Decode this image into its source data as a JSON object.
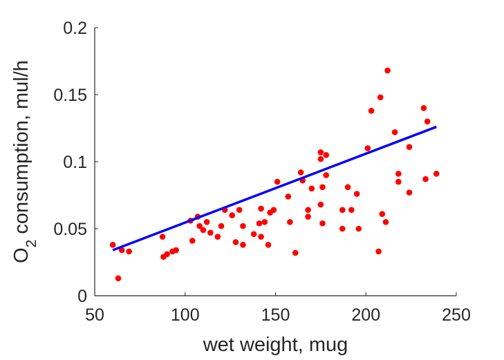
{
  "chart_data": {
    "type": "scatter",
    "title": "",
    "xlabel": "wet weight, mug",
    "ylabel_main": "O",
    "ylabel_sub": "2",
    "ylabel_rest": " consumption, mul/h",
    "xlim": [
      50,
      250
    ],
    "ylim": [
      0,
      0.2
    ],
    "xticks": [
      50,
      100,
      150,
      200,
      250
    ],
    "xtick_labels": [
      "50",
      "100",
      "150",
      "200",
      "250"
    ],
    "yticks": [
      0,
      0.05,
      0.1,
      0.15,
      0.2
    ],
    "ytick_labels": [
      "0",
      "0.05",
      "0.1",
      "0.15",
      "0.2"
    ],
    "grid": false,
    "legend": "none",
    "point_color": "#ff0000",
    "line_color": "#0000ff",
    "points": [
      [
        60,
        0.038
      ],
      [
        63,
        0.013
      ],
      [
        65,
        0.034
      ],
      [
        69,
        0.033
      ],
      [
        87.5,
        0.044
      ],
      [
        88,
        0.029
      ],
      [
        90,
        0.031
      ],
      [
        93,
        0.033
      ],
      [
        95,
        0.034
      ],
      [
        103,
        0.056
      ],
      [
        104,
        0.041
      ],
      [
        107,
        0.059
      ],
      [
        108,
        0.052
      ],
      [
        110,
        0.049
      ],
      [
        112,
        0.055
      ],
      [
        114,
        0.047
      ],
      [
        118,
        0.044
      ],
      [
        120,
        0.052
      ],
      [
        122,
        0.064
      ],
      [
        126,
        0.06
      ],
      [
        128,
        0.04
      ],
      [
        130,
        0.064
      ],
      [
        132,
        0.052
      ],
      [
        132,
        0.038
      ],
      [
        138,
        0.046
      ],
      [
        141,
        0.054
      ],
      [
        142,
        0.044
      ],
      [
        142,
        0.065
      ],
      [
        144,
        0.055
      ],
      [
        146,
        0.038
      ],
      [
        147,
        0.062
      ],
      [
        149,
        0.064
      ],
      [
        151,
        0.085
      ],
      [
        157,
        0.074
      ],
      [
        158,
        0.055
      ],
      [
        161,
        0.032
      ],
      [
        164,
        0.092
      ],
      [
        165,
        0.086
      ],
      [
        168,
        0.064
      ],
      [
        168,
        0.059
      ],
      [
        170,
        0.08
      ],
      [
        175,
        0.102
      ],
      [
        175,
        0.107
      ],
      [
        175,
        0.068
      ],
      [
        176,
        0.081
      ],
      [
        176,
        0.054
      ],
      [
        178,
        0.105
      ],
      [
        178,
        0.09
      ],
      [
        187,
        0.064
      ],
      [
        187,
        0.05
      ],
      [
        190,
        0.081
      ],
      [
        192,
        0.064
      ],
      [
        195,
        0.076
      ],
      [
        196,
        0.05
      ],
      [
        201,
        0.11
      ],
      [
        203,
        0.138
      ],
      [
        207,
        0.033
      ],
      [
        208,
        0.148
      ],
      [
        209,
        0.061
      ],
      [
        211,
        0.055
      ],
      [
        212,
        0.168
      ],
      [
        216,
        0.122
      ],
      [
        218,
        0.091
      ],
      [
        218,
        0.085
      ],
      [
        224,
        0.111
      ],
      [
        224,
        0.077
      ],
      [
        232,
        0.14
      ],
      [
        233,
        0.087
      ],
      [
        234,
        0.13
      ],
      [
        239,
        0.091
      ]
    ],
    "fit_line": {
      "x": [
        60,
        239
      ],
      "y": [
        0.034,
        0.126
      ]
    }
  }
}
